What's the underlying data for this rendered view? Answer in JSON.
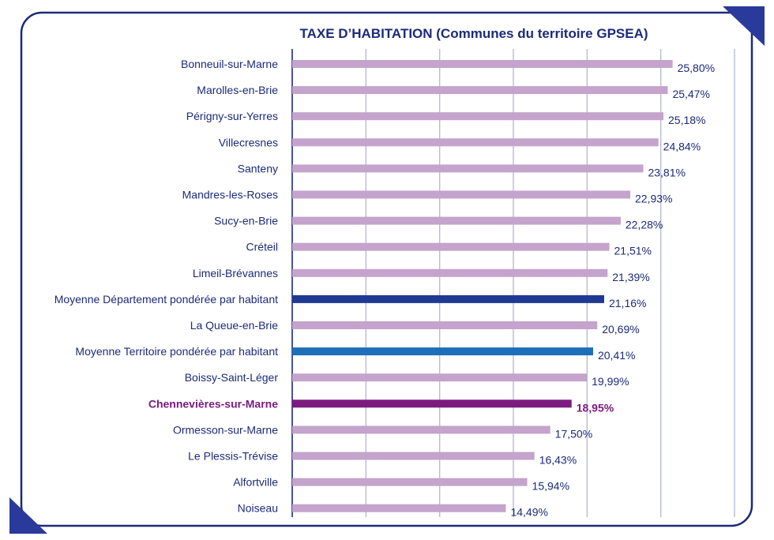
{
  "chart_data": {
    "type": "bar",
    "orientation": "horizontal",
    "title": "TAXE D’HABITATION (Communes du territoire GPSEA)",
    "xlabel": "",
    "ylabel": "",
    "xlim": [
      0,
      30
    ],
    "grid": true,
    "legend": "none",
    "colors": {
      "default": "#c4a3cc",
      "department_avg": "#1f3a93",
      "territory_avg": "#1f6fb8",
      "highlight": "#7b1b80",
      "text": "#1b2a7a",
      "frame": "#1b2a7a",
      "grid": "#b9bcd4"
    },
    "categories": [
      "Bonneuil-sur-Marne",
      "Marolles-en-Brie",
      "Périgny-sur-Yerres",
      "Villecresnes",
      "Santeny",
      "Mandres-les-Roses",
      "Sucy-en-Brie",
      "Créteil",
      "Limeil-Brévannes",
      "Moyenne Département pondérée par habitant",
      "La Queue-en-Brie",
      "Moyenne Territoire pondérée par habitant",
      "Boissy-Saint-Léger",
      "Chennevières-sur-Marne",
      "Ormesson-sur-Marne",
      "Le Plessis-Trévise",
      "Alfortville",
      "Noiseau"
    ],
    "values": [
      25.8,
      25.47,
      25.18,
      24.84,
      23.81,
      22.93,
      22.28,
      21.51,
      21.39,
      21.16,
      20.69,
      20.41,
      19.99,
      18.95,
      17.5,
      16.43,
      15.94,
      14.49
    ],
    "value_labels": [
      "25,80%",
      "25,47%",
      "25,18%",
      "24,84%",
      "23,81%",
      "22,93%",
      "22,28%",
      "21,51%",
      "21,39%",
      "21,16%",
      "20,69%",
      "20,41%",
      "19,99%",
      "18,95%",
      "17,50%",
      "16,43%",
      "15,94%",
      "14,49%"
    ],
    "bar_kinds": [
      "default",
      "default",
      "default",
      "default",
      "default",
      "default",
      "default",
      "default",
      "default",
      "department_avg",
      "default",
      "territory_avg",
      "default",
      "highlight",
      "default",
      "default",
      "default",
      "default"
    ]
  }
}
